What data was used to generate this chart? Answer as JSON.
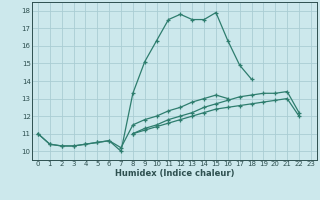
{
  "xlabel": "Humidex (Indice chaleur)",
  "ylabel": "",
  "xlim": [
    -0.5,
    23.5
  ],
  "ylim": [
    9.5,
    18.5
  ],
  "xticks": [
    0,
    1,
    2,
    3,
    4,
    5,
    6,
    7,
    8,
    9,
    10,
    11,
    12,
    13,
    14,
    15,
    16,
    17,
    18,
    19,
    20,
    21,
    22,
    23
  ],
  "yticks": [
    10,
    11,
    12,
    13,
    14,
    15,
    16,
    17,
    18
  ],
  "background_color": "#cce8ec",
  "grid_color": "#aacdd4",
  "line_color": "#2e7d6e",
  "tick_color": "#2e5050",
  "xlabel_color": "#2e5050",
  "figsize": [
    3.2,
    2.0
  ],
  "dpi": 100,
  "lines": [
    {
      "x": [
        0,
        1,
        2,
        3,
        4,
        5,
        6,
        7,
        8,
        9,
        10,
        11,
        12,
        13,
        14,
        15,
        16,
        17,
        18
      ],
      "y": [
        11.0,
        10.4,
        10.3,
        10.3,
        10.4,
        10.5,
        10.6,
        10.0,
        13.3,
        15.1,
        16.3,
        17.5,
        17.8,
        17.5,
        17.5,
        17.9,
        16.3,
        14.9,
        14.1
      ]
    },
    {
      "x": [
        0,
        1,
        2,
        3,
        4,
        5,
        6,
        7,
        8,
        9,
        10,
        11,
        12,
        13,
        14,
        15,
        16
      ],
      "y": [
        11.0,
        10.4,
        10.3,
        10.3,
        10.4,
        10.5,
        10.6,
        10.2,
        11.5,
        11.8,
        12.0,
        12.3,
        12.5,
        12.8,
        13.0,
        13.2,
        13.0
      ]
    },
    {
      "x": [
        8,
        9,
        10,
        11,
        12,
        13,
        14,
        15,
        16,
        17,
        18,
        19,
        20,
        21,
        22
      ],
      "y": [
        11.0,
        11.3,
        11.5,
        11.8,
        12.0,
        12.2,
        12.5,
        12.7,
        12.9,
        13.1,
        13.2,
        13.3,
        13.3,
        13.4,
        12.2
      ]
    },
    {
      "x": [
        8,
        9,
        10,
        11,
        12,
        13,
        14,
        15,
        16,
        17,
        18,
        19,
        20,
        21,
        22
      ],
      "y": [
        11.0,
        11.2,
        11.4,
        11.6,
        11.8,
        12.0,
        12.2,
        12.4,
        12.5,
        12.6,
        12.7,
        12.8,
        12.9,
        13.0,
        12.0
      ]
    }
  ]
}
